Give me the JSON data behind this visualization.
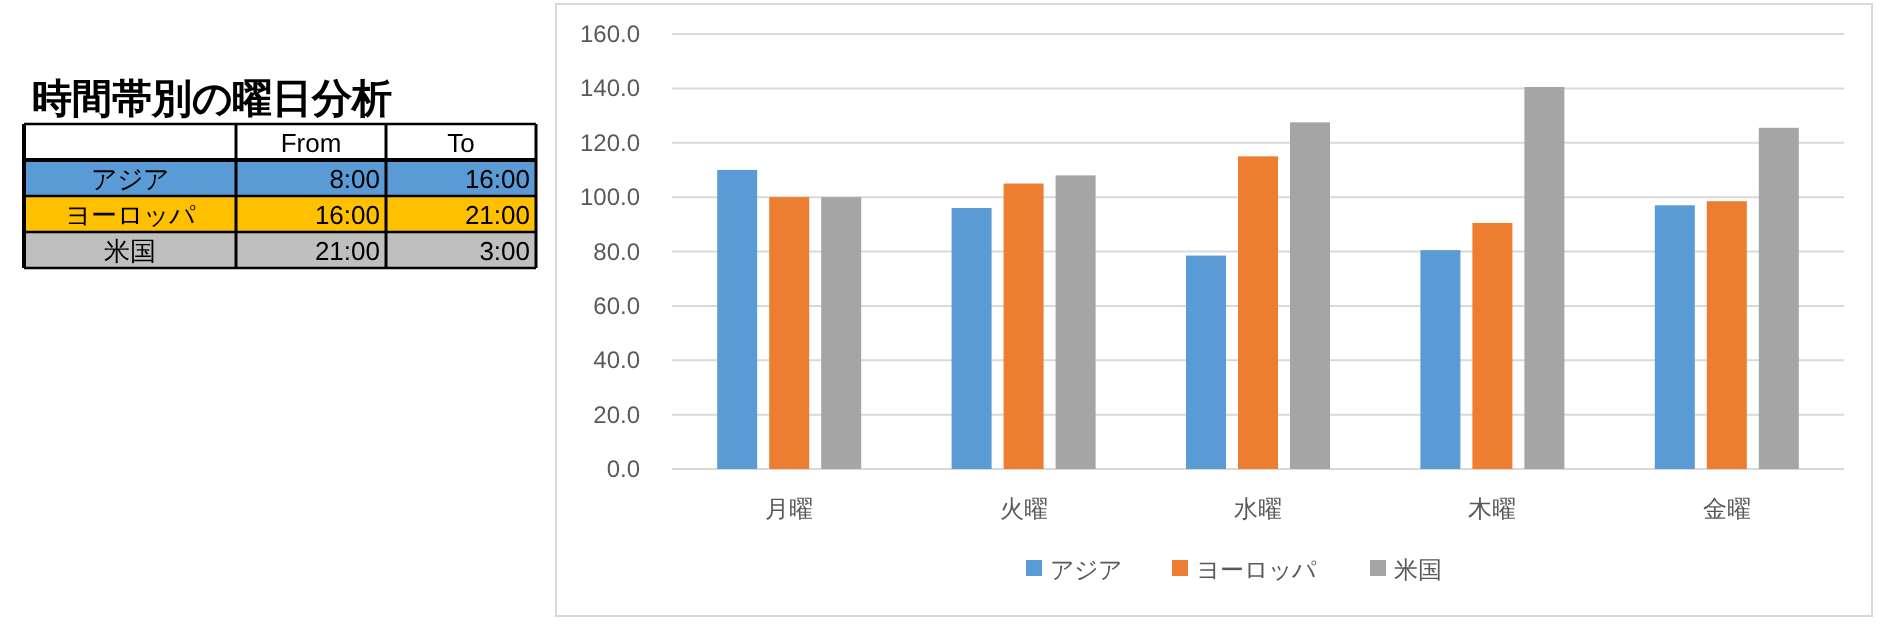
{
  "chart_data": [
    {
      "type": "other",
      "title": "時間帯別の曜日分析",
      "categories": [
        "From",
        "To"
      ],
      "y_categories": [
        "アジア",
        "ヨーロッパ",
        "米国"
      ],
      "cell_labels": [
        [
          "8:00",
          "16:00"
        ],
        [
          "16:00",
          "21:00"
        ],
        [
          "21:00",
          "3:00"
        ]
      ],
      "colors": [
        "#5b9bd5",
        "#ffc000",
        "#bfbfbf"
      ]
    },
    {
      "type": "bar",
      "categories": [
        "月曜",
        "火曜",
        "水曜",
        "木曜",
        "金曜"
      ],
      "series": [
        {
          "name": "アジア",
          "color": "#5b9bd5",
          "values": [
            110,
            96,
            78.5,
            80.5,
            97
          ]
        },
        {
          "name": "ヨーロッパ",
          "color": "#ed7d31",
          "values": [
            100,
            105,
            115,
            90.5,
            98.5
          ]
        },
        {
          "name": "米国",
          "color": "#a5a5a5",
          "values": [
            100,
            108,
            127.5,
            140.5,
            125.5
          ]
        }
      ],
      "ylim": [
        0,
        160
      ],
      "yticks": [
        {
          "value": 0,
          "label": "0.0"
        },
        {
          "value": 20,
          "label": "20.0"
        },
        {
          "value": 40,
          "label": "40.0"
        },
        {
          "value": 60,
          "label": "60.0"
        },
        {
          "value": 80,
          "label": "80.0"
        },
        {
          "value": 100,
          "label": "100.0"
        },
        {
          "value": 120,
          "label": "120.0"
        },
        {
          "value": 140,
          "label": "140.0"
        },
        {
          "value": 160,
          "label": "160.0"
        }
      ],
      "grid": "y",
      "legend": "bottom"
    }
  ]
}
